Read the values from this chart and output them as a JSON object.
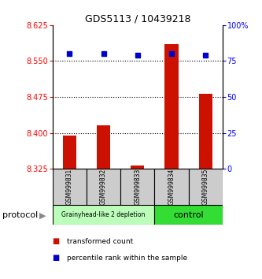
{
  "title": "GDS5113 / 10439218",
  "samples": [
    "GSM999831",
    "GSM999832",
    "GSM999833",
    "GSM999834",
    "GSM999835"
  ],
  "red_values": [
    8.395,
    8.415,
    8.332,
    8.585,
    8.482
  ],
  "blue_values": [
    8.565,
    8.566,
    8.562,
    8.566,
    8.562
  ],
  "ylim_left": [
    8.325,
    8.625
  ],
  "ylim_right": [
    0,
    100
  ],
  "yticks_left": [
    8.325,
    8.4,
    8.475,
    8.55,
    8.625
  ],
  "yticks_right": [
    0,
    25,
    50,
    75,
    100
  ],
  "ytick_labels_right": [
    "0",
    "25",
    "50",
    "75",
    "100%"
  ],
  "bar_color": "#cc1100",
  "marker_color": "#0000cc",
  "bar_width": 0.4,
  "group1_label": "Grainyhead-like 2 depletion",
  "group1_color": "#bbffbb",
  "group2_label": "control",
  "group2_color": "#33dd33",
  "protocol_label": "protocol",
  "legend_red": "transformed count",
  "legend_blue": "percentile rank within the sample",
  "background_color": "#ffffff",
  "sample_box_color": "#cccccc",
  "grid_dotted_ticks": [
    8.4,
    8.475,
    8.55
  ]
}
